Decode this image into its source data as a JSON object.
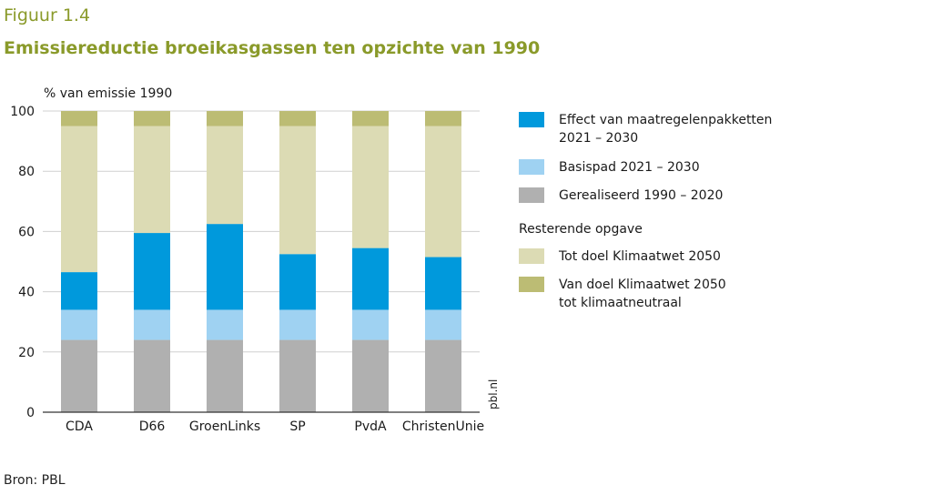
{
  "figure_number": "Figuur 1.4",
  "title": "Emissiereductie broeikasgassen ten opzichte van 1990",
  "source": "Bron: PBL",
  "watermark": "pbl.nl",
  "colors": {
    "title": "#8a9a2a",
    "gerealiseerd": "#b0b0b0",
    "basispad": "#9fd2f2",
    "effect": "#0099dc",
    "tot_doel": "#dcdbb4",
    "van_doel": "#bcbc74"
  },
  "chart_data": {
    "type": "bar",
    "stacked": true,
    "ylabel": "% van emissie 1990",
    "ylim": [
      0,
      100
    ],
    "yticks": [
      0,
      20,
      40,
      60,
      80,
      100
    ],
    "grid": true,
    "categories": [
      "CDA",
      "D66",
      "GroenLinks",
      "SP",
      "PvdA",
      "ChristenUnie"
    ],
    "series": [
      {
        "key": "gerealiseerd",
        "name": "Gerealiseerd 1990 – 2020",
        "values": [
          24,
          24,
          24,
          24,
          24,
          24
        ]
      },
      {
        "key": "basispad",
        "name": "Basispad 2021 – 2030",
        "values": [
          10,
          10,
          10,
          10,
          10,
          10
        ]
      },
      {
        "key": "effect",
        "name": "Effect van maatregelenpakketten 2021 – 2030",
        "values": [
          12.5,
          25.5,
          28.5,
          18.5,
          20.5,
          17.5
        ]
      },
      {
        "key": "tot_doel",
        "name": "Tot doel Klimaatwet 2050",
        "values": [
          48.5,
          35.5,
          32.5,
          42.5,
          40.5,
          43.5
        ]
      },
      {
        "key": "van_doel",
        "name": "Van doel Klimaatwet 2050 tot klimaatneutraal",
        "values": [
          5,
          5,
          5,
          5,
          5,
          5
        ]
      }
    ],
    "legend": {
      "position": "right",
      "items": [
        {
          "key": "effect",
          "lines": [
            "Effect van maatregelenpakketten",
            "2021 – 2030"
          ]
        },
        {
          "key": "basispad",
          "lines": [
            "Basispad 2021 – 2030"
          ]
        },
        {
          "key": "gerealiseerd",
          "lines": [
            "Gerealiseerd 1990 – 2020"
          ]
        },
        {
          "heading": "Resterende opgave"
        },
        {
          "key": "tot_doel",
          "lines": [
            "Tot doel Klimaatwet 2050"
          ]
        },
        {
          "key": "van_doel",
          "lines": [
            "Van doel Klimaatwet 2050",
            "tot klimaatneutraal"
          ]
        }
      ]
    }
  }
}
